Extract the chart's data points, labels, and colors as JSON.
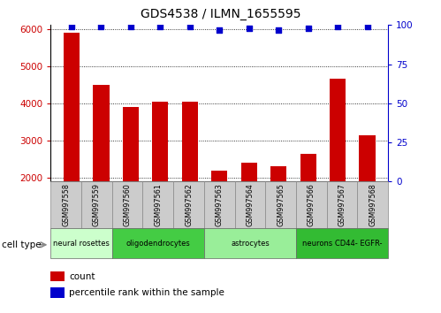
{
  "title": "GDS4538 / ILMN_1655595",
  "samples": [
    "GSM997558",
    "GSM997559",
    "GSM997560",
    "GSM997561",
    "GSM997562",
    "GSM997563",
    "GSM997564",
    "GSM997565",
    "GSM997566",
    "GSM997567",
    "GSM997568"
  ],
  "counts": [
    5900,
    4500,
    3900,
    4050,
    4050,
    2200,
    2400,
    2300,
    2650,
    4650,
    3150
  ],
  "percentile_ranks": [
    99,
    99,
    99,
    99,
    99,
    97,
    98,
    97,
    98,
    99,
    99
  ],
  "ylim_left": [
    1900,
    6100
  ],
  "ylim_right": [
    0,
    100
  ],
  "yticks_left": [
    2000,
    3000,
    4000,
    5000,
    6000
  ],
  "yticks_right": [
    0,
    25,
    50,
    75,
    100
  ],
  "bar_color": "#cc0000",
  "dot_color": "#0000cc",
  "cell_types": [
    {
      "label": "neural rosettes",
      "start": 0,
      "end": 2,
      "color": "#ccffcc"
    },
    {
      "label": "oligodendrocytes",
      "start": 2,
      "end": 5,
      "color": "#44cc44"
    },
    {
      "label": "astrocytes",
      "start": 5,
      "end": 8,
      "color": "#99ee99"
    },
    {
      "label": "neurons CD44- EGFR-",
      "start": 8,
      "end": 11,
      "color": "#33bb33"
    }
  ],
  "legend_count_label": "count",
  "legend_pct_label": "percentile rank within the sample",
  "bar_width": 0.55
}
